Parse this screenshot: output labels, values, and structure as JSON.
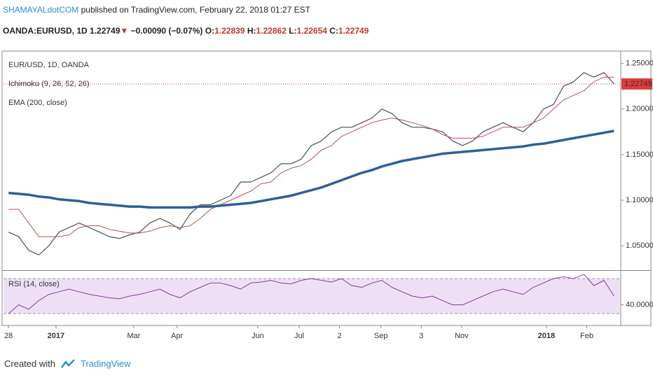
{
  "header": {
    "author": "SHAMAYALdotCOM",
    "published": "published on TradingView.com, February 22, 2018 01:27 EST",
    "symbol": "OANDA:EURUSD, 1D",
    "price": "1.22749",
    "arrow": "▼",
    "change": "−0.00090 (−0.07%)",
    "o_label": "O:",
    "open": "1.22839",
    "h_label": "H:",
    "high": "1.22862",
    "l_label": "L:",
    "low": "1.22654",
    "c_label": "C:",
    "close": "1.22749"
  },
  "footer": {
    "created": "Created with",
    "brand": "TradingView"
  },
  "chart_data": [
    {
      "type": "line",
      "x": [
        0,
        1,
        2,
        3,
        4,
        5,
        6,
        7,
        8,
        9,
        10,
        11,
        12,
        13,
        14,
        15,
        16,
        17,
        18,
        19,
        20,
        21,
        22,
        23,
        24,
        25,
        26,
        27,
        28,
        29,
        30,
        31,
        32,
        33,
        34,
        35,
        36,
        37,
        38,
        39,
        40,
        41,
        42,
        43,
        44,
        45,
        46,
        47,
        48,
        49,
        50,
        51,
        52,
        53,
        54,
        55,
        56,
        57,
        58,
        59,
        60
      ],
      "series": [
        {
          "name": "EUR/USD, 1D, OANDA",
          "color": "#4a4f5c",
          "width": 1.2,
          "values": [
            1.065,
            1.06,
            1.045,
            1.04,
            1.05,
            1.065,
            1.07,
            1.075,
            1.07,
            1.065,
            1.06,
            1.058,
            1.062,
            1.065,
            1.075,
            1.08,
            1.075,
            1.068,
            1.085,
            1.095,
            1.095,
            1.1,
            1.105,
            1.12,
            1.12,
            1.125,
            1.13,
            1.14,
            1.14,
            1.145,
            1.16,
            1.165,
            1.175,
            1.18,
            1.18,
            1.185,
            1.19,
            1.2,
            1.195,
            1.185,
            1.18,
            1.18,
            1.178,
            1.175,
            1.165,
            1.16,
            1.165,
            1.175,
            1.18,
            1.185,
            1.18,
            1.175,
            1.185,
            1.2,
            1.205,
            1.225,
            1.23,
            1.24,
            1.235,
            1.24,
            1.2275
          ]
        },
        {
          "name": "Ichimoku (9, 26, 52, 26)",
          "color": "#b5534f",
          "width": 1,
          "values": [
            1.09,
            1.09,
            1.075,
            1.06,
            1.06,
            1.06,
            1.062,
            1.07,
            1.072,
            1.072,
            1.068,
            1.066,
            1.064,
            1.064,
            1.066,
            1.07,
            1.072,
            1.07,
            1.072,
            1.08,
            1.09,
            1.095,
            1.1,
            1.105,
            1.11,
            1.118,
            1.12,
            1.13,
            1.135,
            1.138,
            1.145,
            1.155,
            1.16,
            1.17,
            1.175,
            1.18,
            1.185,
            1.188,
            1.19,
            1.188,
            1.185,
            1.182,
            1.178,
            1.172,
            1.168,
            1.168,
            1.168,
            1.17,
            1.175,
            1.18,
            1.18,
            1.18,
            1.185,
            1.19,
            1.2,
            1.21,
            1.215,
            1.22,
            1.23,
            1.235,
            1.235
          ]
        },
        {
          "name": "EMA (200, close)",
          "color": "#2f5f99",
          "width": 3.5,
          "values": [
            1.108,
            1.107,
            1.106,
            1.104,
            1.103,
            1.101,
            1.1,
            1.099,
            1.097,
            1.096,
            1.095,
            1.094,
            1.093,
            1.093,
            1.092,
            1.092,
            1.092,
            1.092,
            1.092,
            1.093,
            1.093,
            1.094,
            1.095,
            1.096,
            1.097,
            1.099,
            1.101,
            1.103,
            1.105,
            1.108,
            1.111,
            1.114,
            1.118,
            1.122,
            1.126,
            1.13,
            1.133,
            1.137,
            1.14,
            1.143,
            1.145,
            1.147,
            1.149,
            1.151,
            1.152,
            1.153,
            1.154,
            1.155,
            1.156,
            1.157,
            1.158,
            1.159,
            1.161,
            1.162,
            1.164,
            1.166,
            1.168,
            1.17,
            1.172,
            1.174,
            1.176
          ]
        }
      ],
      "xlim": [
        -0.5,
        60.6
      ],
      "xticks": [
        {
          "value": 0,
          "label": "28"
        },
        {
          "value": 4.7,
          "label": "2017"
        },
        {
          "value": 12.4,
          "label": "Mar"
        },
        {
          "value": 16.7,
          "label": "Apr"
        },
        {
          "value": 24.7,
          "label": "Jun"
        },
        {
          "value": 28.8,
          "label": "Jul"
        },
        {
          "value": 32.8,
          "label": "2"
        },
        {
          "value": 36.9,
          "label": "Sep"
        },
        {
          "value": 40.9,
          "label": "3"
        },
        {
          "value": 44.9,
          "label": "Nov"
        },
        {
          "value": 53.3,
          "label": "2018"
        },
        {
          "value": 57.3,
          "label": "Feb"
        }
      ],
      "ylim": [
        1.024,
        1.262
      ],
      "yticks": [
        {
          "value": 1.05,
          "label": "1.05000"
        },
        {
          "value": 1.1,
          "label": "1.10000"
        },
        {
          "value": 1.15,
          "label": "1.15000"
        },
        {
          "value": 1.2,
          "label": "1.20000"
        },
        {
          "value": 1.25,
          "label": "1.25000"
        }
      ],
      "last_value": 1.22749,
      "last_color": "#e03a3a"
    },
    {
      "type": "line",
      "x": [
        0,
        1,
        2,
        3,
        4,
        5,
        6,
        7,
        8,
        9,
        10,
        11,
        12,
        13,
        14,
        15,
        16,
        17,
        18,
        19,
        20,
        21,
        22,
        23,
        24,
        25,
        26,
        27,
        28,
        29,
        30,
        31,
        32,
        33,
        34,
        35,
        36,
        37,
        38,
        39,
        40,
        41,
        42,
        43,
        44,
        45,
        46,
        47,
        48,
        49,
        50,
        51,
        52,
        53,
        54,
        55,
        56,
        57,
        58,
        59,
        60
      ],
      "series": [
        {
          "name": "RSI (14, close)",
          "color": "#8a3a96",
          "width": 1,
          "values": [
            30,
            40,
            35,
            45,
            52,
            55,
            58,
            55,
            52,
            50,
            48,
            47,
            50,
            52,
            55,
            58,
            52,
            48,
            55,
            60,
            65,
            65,
            62,
            58,
            65,
            66,
            68,
            65,
            64,
            68,
            70,
            68,
            66,
            70,
            62,
            60,
            65,
            68,
            60,
            55,
            50,
            48,
            50,
            45,
            40,
            40,
            45,
            50,
            55,
            58,
            55,
            52,
            60,
            65,
            70,
            72,
            70,
            75,
            62,
            68,
            50
          ]
        }
      ],
      "xlim": [
        -0.5,
        60.6
      ],
      "ylim": [
        22,
        78
      ],
      "yticks": [
        {
          "value": 40,
          "label": "40.0000"
        }
      ],
      "band": [
        30,
        70
      ],
      "band_color": "#e9d8f2"
    }
  ]
}
